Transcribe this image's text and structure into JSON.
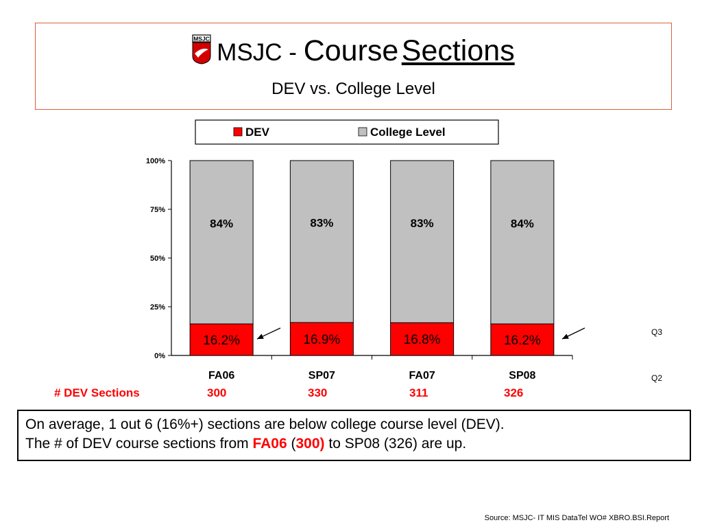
{
  "header": {
    "title_prefix": "MSJC - ",
    "title_word1": "Course",
    "title_word2": "Sections",
    "subtitle": "DEV vs. College Level",
    "logo_text": "MSJC"
  },
  "chart_data": {
    "type": "bar",
    "stacked": "percent",
    "categories": [
      "FA06",
      "SP07",
      "FA07",
      "SP08"
    ],
    "series": [
      {
        "name": "DEV",
        "color": "#ff0000",
        "values": [
          16.2,
          16.9,
          16.8,
          16.2
        ],
        "labels": [
          "16.2%",
          "16.9%",
          "16.8%",
          "16.2%"
        ]
      },
      {
        "name": "College Level",
        "color": "#c0c0c0",
        "values": [
          83.8,
          83.1,
          83.2,
          83.8
        ],
        "labels": [
          "84%",
          "83%",
          "83%",
          "84%"
        ]
      }
    ],
    "yticks": [
      "0%",
      "25%",
      "50%",
      "75%",
      "100%"
    ],
    "ylim": [
      0,
      100
    ],
    "legend_position": "top"
  },
  "dev_sections": {
    "label": "# DEV Sections",
    "values": [
      "300",
      "330",
      "311",
      "326"
    ]
  },
  "side_labels": {
    "q3": "Q3",
    "q2": "Q2"
  },
  "note": {
    "line1": "On average, 1 out 6 (16%+) sections are below college course level (DEV).",
    "line2_a": "The # of DEV course sections from ",
    "line2_b": "FA06",
    "line2_c": " (",
    "line2_d": "300)",
    "line2_e": " to SP08 (326) are up."
  },
  "source": "Source: MSJC- IT MIS DataTel WO# XBRO.BSI.Report"
}
